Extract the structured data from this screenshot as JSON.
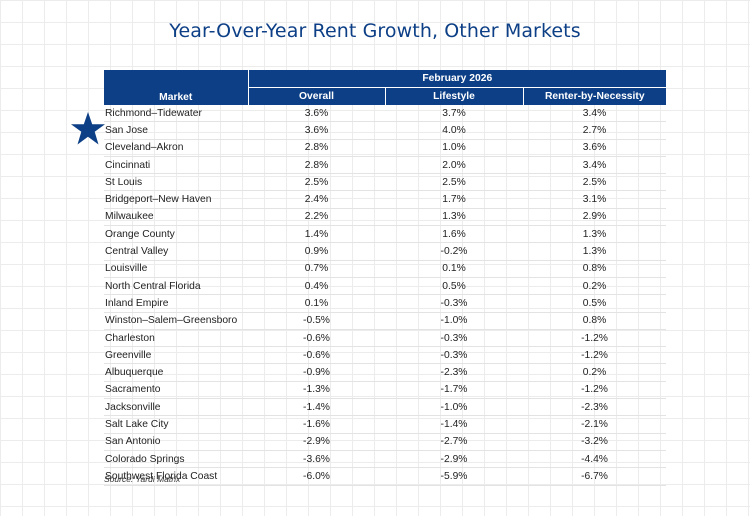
{
  "title": "Year-Over-Year Rent Growth, Other Markets",
  "header": {
    "period": "February 2026",
    "market_label": "Market",
    "columns": [
      "Overall",
      "Lifestyle",
      "Renter-by-Necessity"
    ]
  },
  "rows": [
    {
      "market": "Richmond–Tidewater",
      "overall": "3.6%",
      "lifestyle": "3.7%",
      "rbn": "3.4%"
    },
    {
      "market": "San Jose",
      "overall": "3.6%",
      "lifestyle": "4.0%",
      "rbn": "2.7%",
      "highlighted": true
    },
    {
      "market": "Cleveland–Akron",
      "overall": "2.8%",
      "lifestyle": "1.0%",
      "rbn": "3.6%"
    },
    {
      "market": "Cincinnati",
      "overall": "2.8%",
      "lifestyle": "2.0%",
      "rbn": "3.4%"
    },
    {
      "market": "St Louis",
      "overall": "2.5%",
      "lifestyle": "2.5%",
      "rbn": "2.5%"
    },
    {
      "market": "Bridgeport–New Haven",
      "overall": "2.4%",
      "lifestyle": "1.7%",
      "rbn": "3.1%"
    },
    {
      "market": "Milwaukee",
      "overall": "2.2%",
      "lifestyle": "1.3%",
      "rbn": "2.9%"
    },
    {
      "market": "Orange County",
      "overall": "1.4%",
      "lifestyle": "1.6%",
      "rbn": "1.3%"
    },
    {
      "market": "Central Valley",
      "overall": "0.9%",
      "lifestyle": "-0.2%",
      "rbn": "1.3%"
    },
    {
      "market": "Louisville",
      "overall": "0.7%",
      "lifestyle": "0.1%",
      "rbn": "0.8%"
    },
    {
      "market": "North Central Florida",
      "overall": "0.4%",
      "lifestyle": "0.5%",
      "rbn": "0.2%"
    },
    {
      "market": "Inland Empire",
      "overall": "0.1%",
      "lifestyle": "-0.3%",
      "rbn": "0.5%"
    },
    {
      "market": "Winston–Salem–Greensboro",
      "overall": "-0.5%",
      "lifestyle": "-1.0%",
      "rbn": "0.8%"
    },
    {
      "market": "Charleston",
      "overall": "-0.6%",
      "lifestyle": "-0.3%",
      "rbn": "-1.2%"
    },
    {
      "market": "Greenville",
      "overall": "-0.6%",
      "lifestyle": "-0.3%",
      "rbn": "-1.2%"
    },
    {
      "market": "Albuquerque",
      "overall": "-0.9%",
      "lifestyle": "-2.3%",
      "rbn": "0.2%"
    },
    {
      "market": "Sacramento",
      "overall": "-1.3%",
      "lifestyle": "-1.7%",
      "rbn": "-1.2%"
    },
    {
      "market": "Jacksonville",
      "overall": "-1.4%",
      "lifestyle": "-1.0%",
      "rbn": "-2.3%"
    },
    {
      "market": "Salt Lake City",
      "overall": "-1.6%",
      "lifestyle": "-1.4%",
      "rbn": "-2.1%"
    },
    {
      "market": "San Antonio",
      "overall": "-2.9%",
      "lifestyle": "-2.7%",
      "rbn": "-3.2%"
    },
    {
      "market": "Colorado Springs",
      "overall": "-3.6%",
      "lifestyle": "-2.9%",
      "rbn": "-4.4%"
    },
    {
      "market": "Southwest Florida Coast",
      "overall": "-6.0%",
      "lifestyle": "-5.9%",
      "rbn": "-6.7%"
    }
  ],
  "source": "Source: Yardi Matrix",
  "colors": {
    "header_bg": "#0d3f86",
    "title": "#0d3f86",
    "star": "#0d3f86"
  },
  "icons": {
    "highlight_marker": "star-icon"
  }
}
